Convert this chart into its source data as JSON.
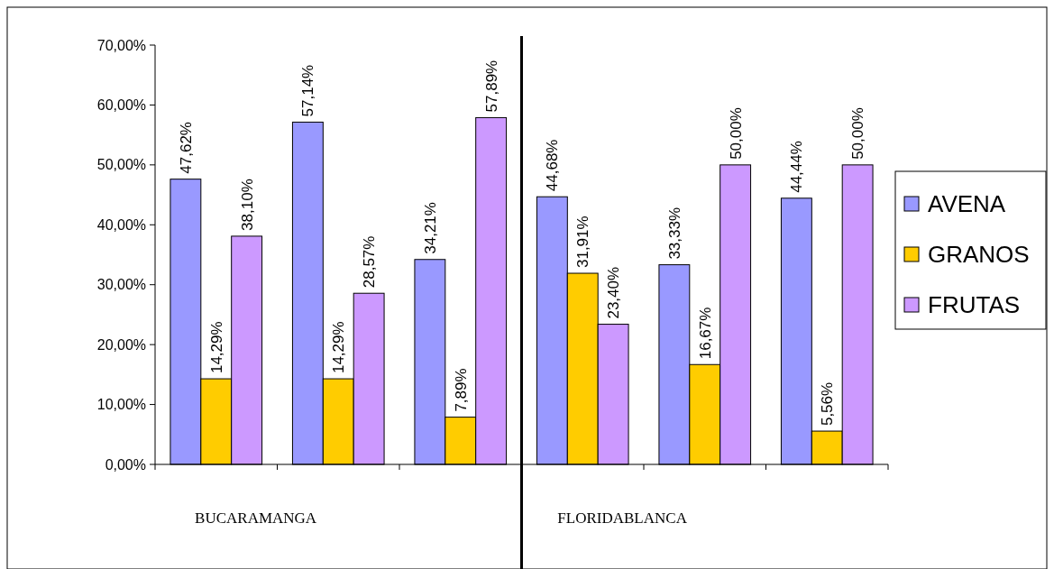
{
  "chart_data": {
    "type": "bar",
    "categories": [
      null,
      null,
      null,
      null,
      null,
      null
    ],
    "series": [
      {
        "name": "AVENA",
        "color": "#9999ff",
        "values": [
          47.62,
          57.14,
          34.21,
          44.68,
          33.33,
          44.44
        ],
        "value_labels": [
          "47,62%",
          "57,14%",
          "34,21%",
          "44,68%",
          "33,33%",
          "44,44%"
        ]
      },
      {
        "name": "GRANOS",
        "color": "#ffcc00",
        "values": [
          14.29,
          14.29,
          7.89,
          31.91,
          16.67,
          5.56
        ],
        "value_labels": [
          "14,29%",
          "14,29%",
          "7,89%",
          "31,91%",
          "16,67%",
          "5,56%"
        ]
      },
      {
        "name": "FRUTAS",
        "color": "#cc99ff",
        "values": [
          38.1,
          28.57,
          57.89,
          23.4,
          50,
          50
        ],
        "value_labels": [
          "38,10%",
          "28,57%",
          "57,89%",
          "23,40%",
          "50,00%",
          "50,00%"
        ]
      }
    ],
    "ylim": [
      0,
      70
    ],
    "yticks": [
      {
        "value": 0,
        "label": "0,00%"
      },
      {
        "value": 10,
        "label": "10,00%"
      },
      {
        "value": 20,
        "label": "20,00%"
      },
      {
        "value": 30,
        "label": "30,00%"
      },
      {
        "value": 40,
        "label": "40,00%"
      },
      {
        "value": 50,
        "label": "50,00%"
      },
      {
        "value": 60,
        "label": "60,00%"
      },
      {
        "value": 70,
        "label": "70,00%"
      }
    ],
    "annotations": [
      "BUCARAMANGA",
      "FLORIDABLANCA"
    ],
    "legend": "right",
    "grid": false
  }
}
